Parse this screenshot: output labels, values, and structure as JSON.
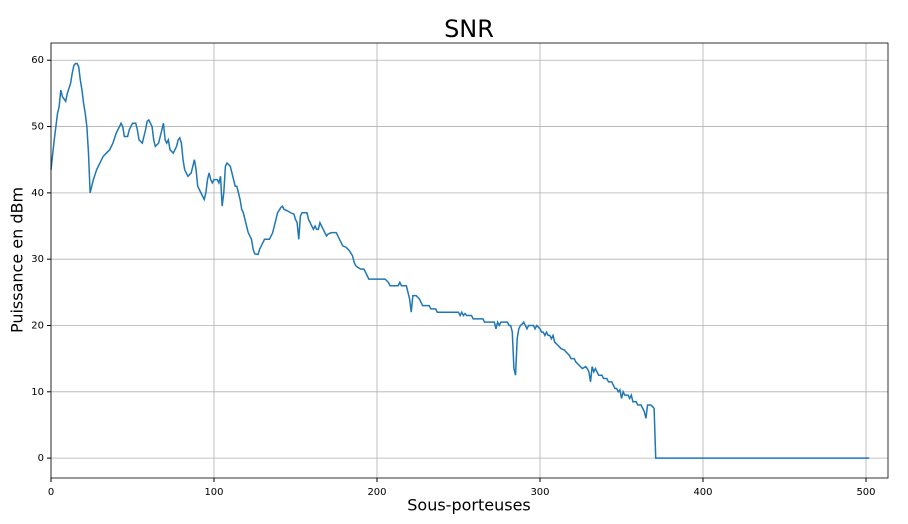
{
  "chart_data": {
    "type": "line",
    "title": "SNR",
    "xlabel": "Sous-porteuses",
    "ylabel": "Puissance en dBm",
    "x": [
      0,
      2,
      4,
      5,
      6,
      7,
      9,
      10,
      12,
      13,
      14,
      15,
      16,
      17,
      18,
      19,
      20,
      21,
      22,
      23,
      24,
      26,
      28,
      30,
      32,
      34,
      36,
      38,
      40,
      42,
      43,
      44,
      45,
      47,
      48,
      50,
      52,
      53,
      54,
      56,
      58,
      59,
      60,
      62,
      63,
      64,
      66,
      68,
      69,
      70,
      71,
      72,
      73,
      75,
      77,
      78,
      79,
      80,
      81,
      82,
      84,
      86,
      87,
      88,
      89,
      90,
      92,
      94,
      95,
      96,
      97,
      98,
      99,
      100,
      102,
      103,
      104,
      105,
      106,
      107,
      108,
      110,
      111,
      112,
      113,
      114,
      115,
      116,
      117,
      118,
      119,
      120,
      121,
      122,
      123,
      124,
      125,
      127,
      128,
      130,
      131,
      134,
      136,
      137,
      138,
      139,
      141,
      142,
      143,
      145,
      147,
      149,
      150,
      151,
      152,
      153,
      154,
      157,
      158,
      160,
      161,
      162,
      163,
      164,
      165,
      166,
      167,
      168,
      169,
      170,
      172,
      175,
      176,
      177,
      178,
      179,
      181,
      183,
      185,
      186,
      187,
      188,
      190,
      192,
      193,
      194,
      195,
      197,
      200,
      205,
      207,
      208,
      213,
      214,
      215,
      218,
      219,
      220,
      221,
      222,
      224,
      226,
      227,
      228,
      232,
      233,
      236,
      237,
      250,
      251,
      252,
      253,
      254,
      255,
      258,
      259,
      265,
      266,
      272,
      273,
      274,
      275,
      276,
      280,
      281,
      282,
      283,
      284,
      285,
      286,
      287,
      288,
      289,
      290,
      291,
      292,
      293,
      296,
      297,
      298,
      300,
      301,
      302,
      303,
      304,
      305,
      306,
      307,
      308,
      309,
      311,
      313,
      315,
      316,
      318,
      319,
      321,
      322,
      324,
      326,
      328,
      329,
      330,
      331,
      332,
      333,
      334,
      335,
      336,
      338,
      339,
      341,
      342,
      344,
      345,
      346,
      347,
      348,
      349,
      350,
      351,
      352,
      354,
      355,
      356,
      357,
      359,
      360,
      362,
      363,
      364,
      365,
      366,
      368,
      369,
      370,
      371,
      502
    ],
    "series": [
      {
        "color": "#1f77b4",
        "values": [
          43.5,
          48,
          52,
          53,
          55.5,
          54.5,
          53.8,
          55,
          56.5,
          58,
          59.2,
          59.5,
          59.5,
          59,
          57,
          55.5,
          53.5,
          52,
          50,
          46,
          40,
          42,
          43.5,
          44.5,
          45.5,
          46,
          46.5,
          47.5,
          49,
          50,
          50.5,
          50,
          48.5,
          48.5,
          49.5,
          50.5,
          50.5,
          49.5,
          48,
          47.5,
          49.5,
          50.8,
          51,
          50,
          48,
          47,
          47.5,
          49.5,
          50.5,
          48,
          47.5,
          48,
          46.5,
          46,
          47,
          48,
          48.3,
          47.5,
          45,
          43.5,
          42.5,
          43,
          44,
          45,
          43.5,
          41,
          40,
          39,
          40,
          42,
          43,
          42,
          41.5,
          42,
          42,
          41.5,
          42.5,
          38,
          40,
          44,
          44.5,
          44,
          43,
          42,
          41,
          41,
          40,
          39,
          37.5,
          37,
          36,
          35,
          34,
          33.5,
          33,
          31.5,
          30.8,
          30.7,
          31.5,
          32.5,
          33,
          33,
          34,
          35,
          36,
          37,
          37.8,
          38,
          37.5,
          37.3,
          37,
          36.8,
          36,
          35.5,
          33,
          36.5,
          37,
          37,
          36,
          35,
          34.5,
          35,
          34.5,
          34.5,
          35.5,
          35,
          34.5,
          34,
          33.5,
          33.8,
          34,
          34,
          33.5,
          33,
          32.5,
          32,
          31.8,
          31.3,
          30.5,
          29.5,
          29,
          28.8,
          28.5,
          28.5,
          28,
          27.5,
          27,
          27,
          27,
          27,
          26.5,
          26,
          26,
          26.5,
          26,
          26,
          25,
          24,
          22,
          24.5,
          24.5,
          24,
          23.5,
          23,
          23,
          22.5,
          22.5,
          22,
          22,
          21.5,
          22,
          21.5,
          21.8,
          21.5,
          21.5,
          21,
          21,
          20.5,
          20.5,
          19.5,
          20.5,
          20,
          20.5,
          20.5,
          20,
          20,
          19,
          13.5,
          12.5,
          18,
          19.5,
          20,
          20.2,
          20.5,
          20,
          19.5,
          20,
          20,
          19.5,
          20,
          19.5,
          19,
          19,
          18.5,
          19,
          18.5,
          18.5,
          18,
          18.5,
          17.5,
          17,
          16.5,
          16.3,
          16,
          15.5,
          15,
          15,
          14.5,
          14,
          13.5,
          13.8,
          13.5,
          13,
          11.5,
          13.8,
          13,
          13.5,
          13,
          12.5,
          12.5,
          12,
          12,
          11.5,
          11.5,
          11,
          10.5,
          10.5,
          10,
          10.3,
          9,
          10,
          9.5,
          9.5,
          9,
          9.5,
          8.5,
          8.5,
          8,
          8,
          7.5,
          7,
          6,
          8,
          8,
          7.8,
          7.5,
          0,
          0
        ]
      }
    ],
    "xlim": [
      0,
      513.5
    ],
    "xticks": [
      0,
      100,
      200,
      300,
      400,
      500
    ],
    "ylim": [
      -3,
      62.6
    ],
    "yticks": [
      0,
      10,
      20,
      30,
      40,
      50,
      60
    ],
    "grid": true
  }
}
